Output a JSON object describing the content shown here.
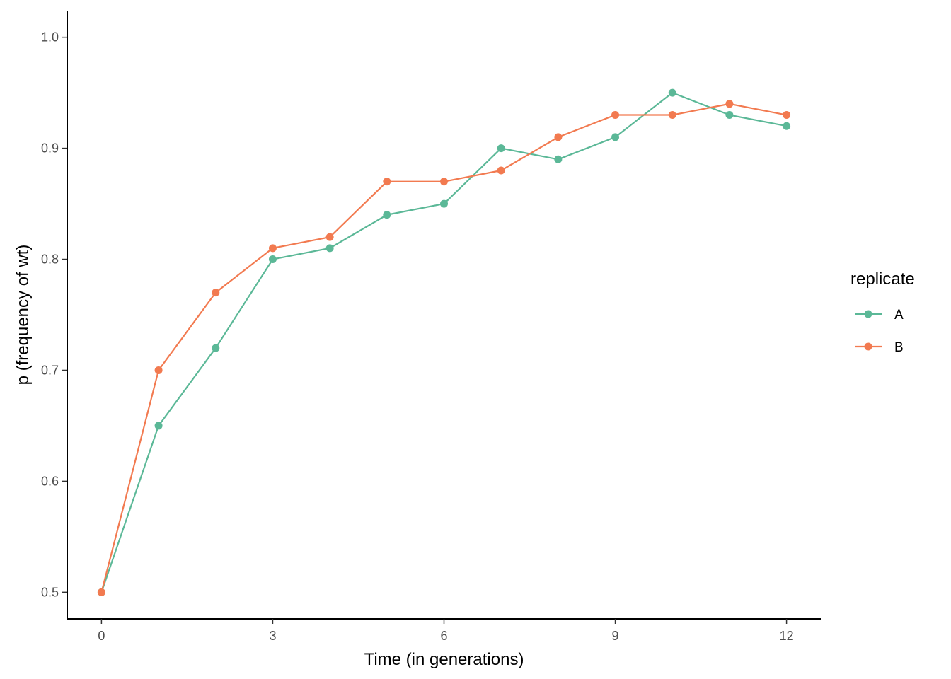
{
  "chart_data": {
    "type": "line",
    "xlabel": "Time (in generations)",
    "ylabel": "p (frequency of wt)",
    "xlim": [
      -0.6,
      12.6
    ],
    "ylim": [
      0.476,
      1.024
    ],
    "x_ticks": [
      0,
      3,
      6,
      9,
      12
    ],
    "y_ticks": [
      0.5,
      0.6,
      0.7,
      0.8,
      0.9,
      1.0
    ],
    "y_tick_labels": [
      "0.5",
      "0.6",
      "0.7",
      "0.8",
      "0.9",
      "1.0"
    ],
    "grid": false,
    "legend": {
      "title": "replicate",
      "position": "right"
    },
    "x": [
      0,
      1,
      2,
      3,
      4,
      5,
      6,
      7,
      8,
      9,
      10,
      11,
      12
    ],
    "series": [
      {
        "name": "A",
        "color": "#5BB897",
        "values": [
          0.5,
          0.65,
          0.72,
          0.8,
          0.81,
          0.84,
          0.85,
          0.9,
          0.89,
          0.91,
          0.95,
          0.93,
          0.92
        ]
      },
      {
        "name": "B",
        "color": "#F27A50",
        "values": [
          0.5,
          0.7,
          0.77,
          0.81,
          0.82,
          0.87,
          0.87,
          0.88,
          0.91,
          0.93,
          0.93,
          0.94,
          0.93
        ]
      }
    ]
  }
}
